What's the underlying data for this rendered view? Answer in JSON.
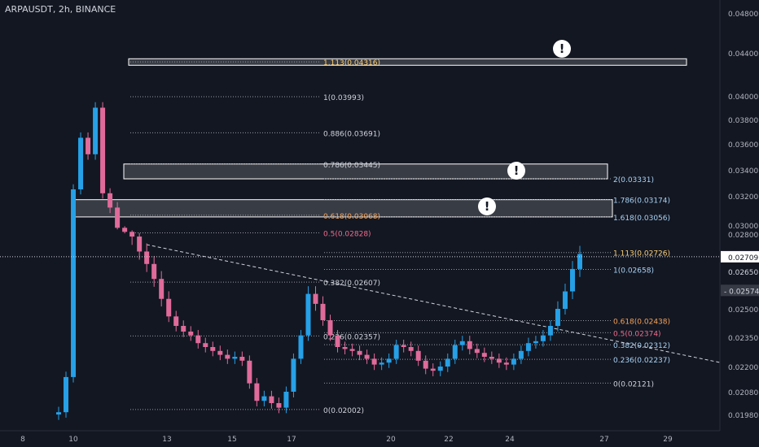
{
  "header": {
    "title": "ARPAUSDT, 2h, BINANCE"
  },
  "colors": {
    "background": "#131722",
    "up": "#26a0e6",
    "down": "#e06b9a",
    "fib_yellow": "#ffd27a",
    "fib_orange": "#f6a45a",
    "fib_red": "#f06e8e",
    "fib_blue": "#a9d3f5",
    "fib_white": "#d1d4dc",
    "current_price_bg": "#ffffff",
    "low_price_bg": "#363a45"
  },
  "chart_data": {
    "type": "candlestick",
    "x_ticks": [
      "8",
      "10",
      "13",
      "15",
      "17",
      "20",
      "22",
      "24",
      "27",
      "29"
    ],
    "y_ticks": [
      "0.04800",
      "0.04400",
      "0.04000",
      "0.03800",
      "0.03600",
      "0.03400",
      "0.03200",
      "0.03000",
      "0.02800",
      "0.02500",
      "0.02350",
      "0.02200",
      "0.02080",
      "0.01980"
    ],
    "price_labels": [
      {
        "text": "0.02709",
        "value": 0.02709,
        "style": "current"
      },
      {
        "text": "0.02650",
        "value": 0.0265,
        "style": "plain"
      },
      {
        "text": "0.02574",
        "value": 0.02574,
        "style": "dark"
      }
    ],
    "fib_left": [
      {
        "label": "1.113(0.04316)",
        "value": 0.04316,
        "color": "fib_yellow"
      },
      {
        "label": "1(0.03993)",
        "value": 0.03993,
        "color": "fib_white"
      },
      {
        "label": "0.886(0.03691)",
        "value": 0.03691,
        "color": "fib_white"
      },
      {
        "label": "0.786(0.03445)",
        "value": 0.03445,
        "color": "fib_white"
      },
      {
        "label": "0.618(0.03068)",
        "value": 0.03068,
        "color": "fib_orange"
      },
      {
        "label": "0.5(0.02828)",
        "value": 0.02828,
        "color": "fib_red"
      },
      {
        "label": "0.382(0.02607)",
        "value": 0.02607,
        "color": "fib_white"
      },
      {
        "label": "0.236(0.02357)",
        "value": 0.02357,
        "color": "fib_white"
      },
      {
        "label": "0(0.02002)",
        "value": 0.02002,
        "color": "fib_white"
      }
    ],
    "fib_right": [
      {
        "label": "2(0.03331)",
        "value": 0.03331,
        "color": "fib_blue"
      },
      {
        "label": "1.786(0.03174)",
        "value": 0.03174,
        "color": "fib_blue"
      },
      {
        "label": "1.618(0.03056)",
        "value": 0.03056,
        "color": "fib_blue"
      },
      {
        "label": "1.113(0.02726)",
        "value": 0.02726,
        "color": "fib_yellow"
      },
      {
        "label": "1(0.02658)",
        "value": 0.02658,
        "color": "fib_blue"
      },
      {
        "label": "0.618(0.02438)",
        "value": 0.02438,
        "color": "fib_orange"
      },
      {
        "label": "0.5(0.02374)",
        "value": 0.02374,
        "color": "fib_red"
      },
      {
        "label": "0.382(0.02312)",
        "value": 0.02312,
        "color": "fib_blue"
      },
      {
        "label": "0.236(0.02237)",
        "value": 0.02237,
        "color": "fib_blue"
      },
      {
        "label": "0(0.02121)",
        "value": 0.02121,
        "color": "fib_white"
      }
    ],
    "zones": [
      {
        "name": "zone-1.113",
        "low": 0.0429,
        "high": 0.04345
      },
      {
        "name": "zone-0.786",
        "low": 0.03331,
        "high": 0.03445
      },
      {
        "name": "zone-0.618",
        "low": 0.03056,
        "high": 0.03174
      }
    ],
    "warning_icons": 3,
    "candles_close_path": [
      0.0199,
      0.0215,
      0.0325,
      0.0365,
      0.0352,
      0.039,
      0.0322,
      0.0312,
      0.0294,
      0.0285,
      0.0279,
      0.0273,
      0.0268,
      0.0262,
      0.0254,
      0.0246,
      0.0241,
      0.0238,
      0.0236,
      0.0232,
      0.023,
      0.0228,
      0.0226,
      0.0224,
      0.0225,
      0.0223,
      0.0212,
      0.0204,
      0.0206,
      0.0203,
      0.0201,
      0.0208,
      0.0224,
      0.0236,
      0.0256,
      0.0252,
      0.0244,
      0.0236,
      0.023,
      0.0229,
      0.0228,
      0.0226,
      0.0224,
      0.0221,
      0.0222,
      0.0224,
      0.0231,
      0.023,
      0.0228,
      0.0223,
      0.0219,
      0.0218,
      0.022,
      0.0224,
      0.0231,
      0.0233,
      0.0229,
      0.0227,
      0.0225,
      0.0224,
      0.0222,
      0.0221,
      0.0224,
      0.0228,
      0.0232,
      0.0233,
      0.0236,
      0.0241,
      0.025,
      0.0257,
      0.0266,
      0.0272
    ]
  }
}
